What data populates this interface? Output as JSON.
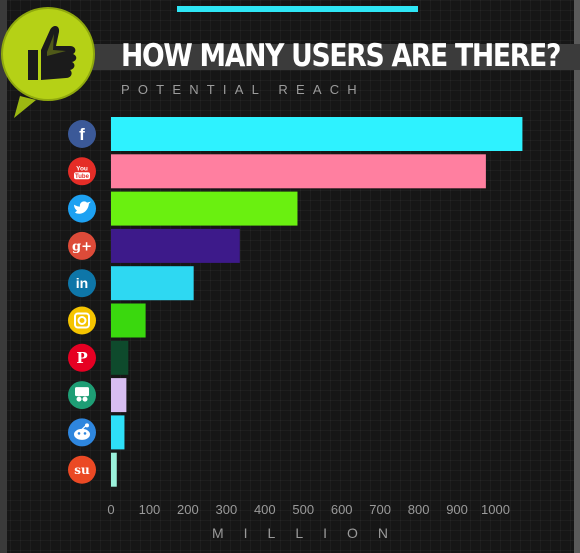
{
  "header": {
    "title": "HOW MANY USERS ARE THERE?",
    "subtitle": "POTENTIAL REACH"
  },
  "colors": {
    "accent": "#2ee6f5",
    "logo": "#b5d116"
  },
  "chart_data": {
    "type": "bar",
    "orientation": "horizontal",
    "title": "HOW MANY USERS ARE THERE?",
    "subtitle": "POTENTIAL REACH",
    "xlabel": "MILLION",
    "ylabel": "",
    "xlim": [
      0,
      1060
    ],
    "xticks": [
      0,
      100,
      200,
      300,
      400,
      500,
      600,
      700,
      800,
      900,
      1000
    ],
    "grid": false,
    "categories": [
      {
        "icon": "facebook-icon",
        "label": "f",
        "icon_color": "#3b5998",
        "value": 1070,
        "bar_color": "#2ef2ff"
      },
      {
        "icon": "youtube-icon",
        "label": "You Tube",
        "icon_color": "#e52d27",
        "value": 975,
        "bar_color": "#ff7fa0"
      },
      {
        "icon": "twitter-icon",
        "label": "",
        "icon_color": "#1da1f2",
        "value": 485,
        "bar_color": "#6af010"
      },
      {
        "icon": "google-plus-icon",
        "label": "g+",
        "icon_color": "#dd4b39",
        "value": 335,
        "bar_color": "#3d1a8a"
      },
      {
        "icon": "linkedin-icon",
        "label": "in",
        "icon_color": "#0e76a8",
        "value": 215,
        "bar_color": "#2ed8f2"
      },
      {
        "icon": "instagram-icon",
        "label": "",
        "icon_color": "#f5c400",
        "value": 90,
        "bar_color": "#3ad80e"
      },
      {
        "icon": "pinterest-icon",
        "label": "P",
        "icon_color": "#e60023",
        "value": 45,
        "bar_color": "#0e4a2c"
      },
      {
        "icon": "slideshare-icon",
        "label": "",
        "icon_color": "#1e9e75",
        "value": 40,
        "bar_color": "#d7bdf0"
      },
      {
        "icon": "reddit-icon",
        "label": "",
        "icon_color": "#2e86de",
        "value": 35,
        "bar_color": "#2ee0f8"
      },
      {
        "icon": "stumbleupon-icon",
        "label": "su",
        "icon_color": "#eb4924",
        "value": 15,
        "bar_color": "#9af0da"
      }
    ]
  }
}
